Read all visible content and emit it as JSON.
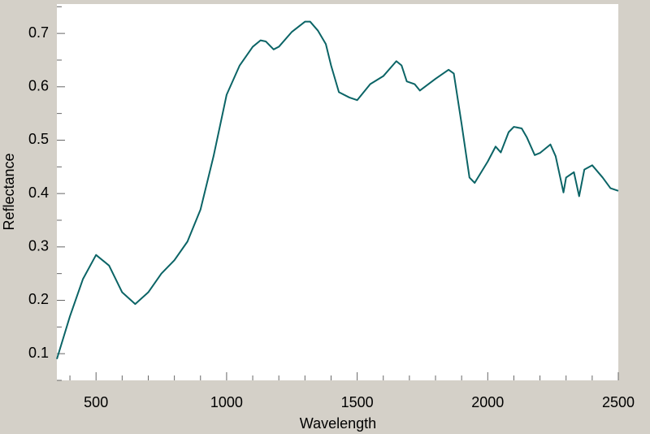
{
  "chart_data": {
    "type": "line",
    "xlabel": "Wavelength",
    "ylabel": "Reflectance",
    "x": [
      350,
      400,
      450,
      500,
      550,
      600,
      650,
      700,
      750,
      800,
      850,
      900,
      950,
      1000,
      1050,
      1100,
      1130,
      1150,
      1180,
      1200,
      1250,
      1300,
      1320,
      1350,
      1380,
      1400,
      1430,
      1470,
      1500,
      1550,
      1600,
      1650,
      1670,
      1690,
      1720,
      1740,
      1800,
      1850,
      1870,
      1900,
      1930,
      1950,
      2000,
      2030,
      2050,
      2080,
      2100,
      2130,
      2150,
      2180,
      2200,
      2240,
      2260,
      2290,
      2300,
      2330,
      2350,
      2370,
      2400,
      2440,
      2470,
      2500
    ],
    "series": [
      {
        "name": "Reflectance",
        "color": "#0b6466",
        "values": [
          0.09,
          0.17,
          0.24,
          0.285,
          0.265,
          0.215,
          0.193,
          0.215,
          0.25,
          0.275,
          0.31,
          0.37,
          0.47,
          0.585,
          0.64,
          0.675,
          0.687,
          0.685,
          0.67,
          0.675,
          0.703,
          0.722,
          0.722,
          0.705,
          0.68,
          0.64,
          0.59,
          0.58,
          0.575,
          0.605,
          0.62,
          0.648,
          0.64,
          0.61,
          0.605,
          0.593,
          0.615,
          0.632,
          0.625,
          0.53,
          0.43,
          0.42,
          0.46,
          0.488,
          0.477,
          0.515,
          0.525,
          0.522,
          0.505,
          0.472,
          0.476,
          0.492,
          0.47,
          0.402,
          0.43,
          0.44,
          0.395,
          0.445,
          0.453,
          0.43,
          0.41,
          0.405
        ]
      }
    ],
    "xlim": [
      350,
      2500
    ],
    "ylim": [
      0.05,
      0.755
    ],
    "xticks": [
      500,
      1000,
      1500,
      2000,
      2500
    ],
    "yticks": [
      0.1,
      0.2,
      0.3,
      0.4,
      0.5,
      0.6,
      0.7
    ],
    "xminorticks": [
      400,
      600,
      700,
      800,
      900,
      1100,
      1200,
      1300,
      1400,
      1600,
      1700,
      1800,
      1900,
      2100,
      2200,
      2300,
      2400
    ],
    "yminorticks": [
      0.05,
      0.15,
      0.25,
      0.35,
      0.45,
      0.55,
      0.65,
      0.75
    ]
  }
}
